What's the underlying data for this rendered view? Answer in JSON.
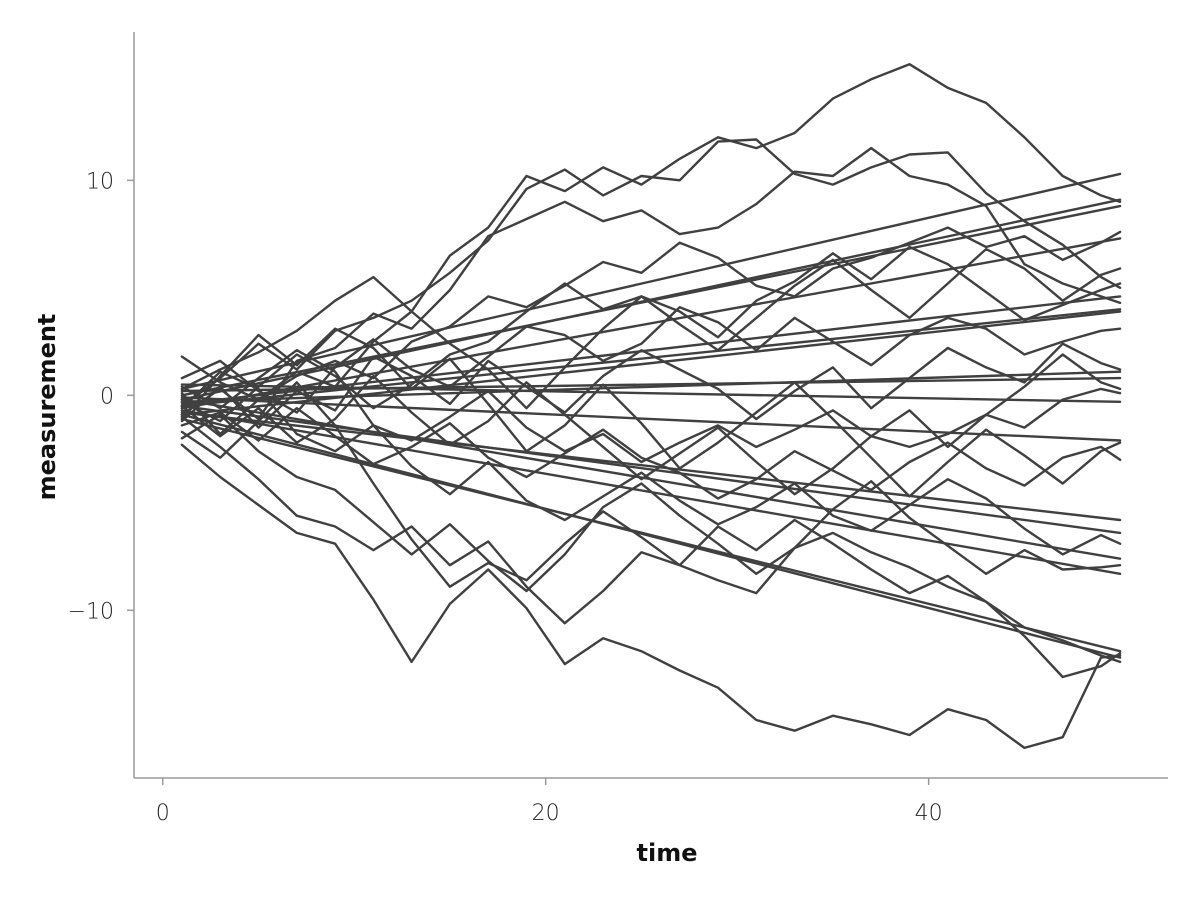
{
  "chart_data": {
    "type": "line",
    "title": "",
    "xlabel": "time",
    "ylabel": "measurement",
    "xlim": [
      -1.5,
      52.5
    ],
    "ylim": [
      -17.8,
      16.9
    ],
    "x_ticks": [
      0,
      20,
      40
    ],
    "y_ticks": [
      -10,
      0,
      10
    ],
    "x_tick_labels": [
      "0",
      "20",
      "40"
    ],
    "y_tick_labels": [
      "−10",
      "0",
      "10"
    ],
    "grid": false,
    "legend": "none",
    "line_color": "#404040",
    "background": "#ffffff",
    "axis_color": "#9a9a9a",
    "series": [
      {
        "x": [
          1,
          50
        ],
        "y": [
          0.3,
          10.3
        ]
      },
      {
        "x": [
          1,
          50
        ],
        "y": [
          -0.2,
          9.1
        ]
      },
      {
        "x": [
          1,
          50
        ],
        "y": [
          0.0,
          8.8
        ]
      },
      {
        "x": [
          1,
          50
        ],
        "y": [
          -0.6,
          7.3
        ]
      },
      {
        "x": [
          1,
          50
        ],
        "y": [
          -0.4,
          4.6
        ]
      },
      {
        "x": [
          1,
          50
        ],
        "y": [
          -0.9,
          3.9
        ]
      },
      {
        "x": [
          1,
          50
        ],
        "y": [
          -0.5,
          4.0
        ]
      },
      {
        "x": [
          1,
          50
        ],
        "y": [
          -0.3,
          1.1
        ]
      },
      {
        "x": [
          1,
          50
        ],
        "y": [
          0.2,
          0.8
        ]
      },
      {
        "x": [
          1,
          50
        ],
        "y": [
          0.5,
          -0.3
        ]
      },
      {
        "x": [
          1,
          50
        ],
        "y": [
          -0.1,
          -2.1
        ]
      },
      {
        "x": [
          1,
          50
        ],
        "y": [
          -0.8,
          -5.8
        ]
      },
      {
        "x": [
          1,
          50
        ],
        "y": [
          -0.5,
          -6.4
        ]
      },
      {
        "x": [
          1,
          50
        ],
        "y": [
          -0.2,
          -7.6
        ]
      },
      {
        "x": [
          1,
          50
        ],
        "y": [
          -0.7,
          -8.3
        ]
      },
      {
        "x": [
          1,
          50
        ],
        "y": [
          -1.1,
          -11.9
        ]
      },
      {
        "x": [
          1,
          50
        ],
        "y": [
          -0.9,
          -12.2
        ]
      },
      {
        "x": [
          1,
          3,
          5,
          7,
          9,
          11,
          13,
          15,
          17,
          19,
          21,
          23,
          25,
          27,
          29,
          31,
          33,
          35,
          37,
          39,
          41,
          43,
          45,
          47,
          49,
          50
        ],
        "y": [
          0.3,
          1.2,
          2.0,
          3.0,
          4.4,
          5.5,
          3.9,
          6.5,
          7.8,
          10.2,
          9.5,
          10.6,
          9.8,
          11.0,
          12.0,
          11.5,
          12.2,
          13.8,
          14.7,
          15.4,
          14.3,
          13.6,
          12.0,
          10.2,
          9.3,
          9.0
        ]
      },
      {
        "x": [
          1,
          3,
          5,
          7,
          9,
          11,
          13,
          15,
          17,
          19,
          21,
          23,
          25,
          27,
          29,
          31,
          33,
          35,
          37,
          39,
          41,
          43,
          45,
          47,
          49,
          50
        ],
        "y": [
          -0.5,
          0.8,
          2.4,
          1.2,
          3.0,
          3.6,
          4.4,
          5.7,
          7.2,
          9.6,
          10.5,
          9.3,
          10.2,
          10.0,
          11.8,
          11.9,
          10.3,
          9.8,
          10.6,
          11.2,
          11.3,
          9.4,
          8.1,
          7.0,
          5.5,
          5.0
        ]
      },
      {
        "x": [
          1,
          3,
          5,
          7,
          9,
          11,
          13,
          15,
          17,
          19,
          21,
          23,
          25,
          27,
          29,
          31,
          33,
          35,
          37,
          39,
          41,
          43,
          45,
          47,
          49,
          50
        ],
        "y": [
          -0.9,
          0.3,
          -1.1,
          1.6,
          2.2,
          3.8,
          3.1,
          4.9,
          7.4,
          8.2,
          9.0,
          8.1,
          8.6,
          7.5,
          7.8,
          8.9,
          10.4,
          10.2,
          11.5,
          10.2,
          9.8,
          8.8,
          6.1,
          5.2,
          4.6,
          4.3
        ]
      },
      {
        "x": [
          1,
          3,
          5,
          7,
          9,
          11,
          13,
          15,
          17,
          19,
          21,
          23,
          25,
          27,
          29,
          31,
          33,
          35,
          37,
          39,
          41,
          43,
          45,
          47,
          49,
          50
        ],
        "y": [
          1.8,
          0.6,
          -0.2,
          0.9,
          1.6,
          0.8,
          2.5,
          3.2,
          4.6,
          4.1,
          5.1,
          6.2,
          5.7,
          7.1,
          6.4,
          5.1,
          4.6,
          5.9,
          6.4,
          7.1,
          7.8,
          6.9,
          7.4,
          6.3,
          7.1,
          7.6
        ]
      },
      {
        "x": [
          1,
          3,
          5,
          7,
          9,
          11,
          13,
          15,
          17,
          19,
          21,
          23,
          25,
          27,
          29,
          31,
          33,
          35,
          37,
          39,
          41,
          43,
          45,
          47,
          49,
          50
        ],
        "y": [
          -0.3,
          -1.2,
          0.4,
          1.9,
          0.9,
          -0.6,
          0.5,
          1.9,
          2.5,
          3.9,
          5.2,
          4.0,
          4.6,
          3.9,
          2.7,
          4.4,
          5.3,
          6.6,
          5.4,
          6.9,
          6.1,
          4.8,
          3.5,
          4.2,
          4.9,
          5.2
        ]
      },
      {
        "x": [
          1,
          3,
          5,
          7,
          9,
          11,
          13,
          15,
          17,
          19,
          21,
          23,
          25,
          27,
          29,
          31,
          33,
          35,
          37,
          39,
          41,
          43,
          45,
          47,
          49,
          50
        ],
        "y": [
          0.8,
          1.6,
          0.2,
          -0.8,
          1.3,
          2.6,
          1.2,
          0.4,
          1.8,
          3.2,
          2.8,
          1.6,
          2.4,
          4.1,
          3.4,
          2.1,
          3.6,
          2.5,
          1.4,
          2.8,
          3.6,
          3.1,
          1.9,
          2.5,
          3.0,
          3.1
        ]
      },
      {
        "x": [
          1,
          3,
          5,
          7,
          9,
          11,
          13,
          15,
          17,
          19,
          21,
          23,
          25,
          27,
          29,
          31,
          33,
          35,
          37,
          39,
          41,
          43,
          45,
          47,
          49,
          50
        ],
        "y": [
          -1.2,
          0.4,
          -1.5,
          0.2,
          -0.7,
          1.8,
          0.9,
          -0.4,
          1.6,
          0.4,
          -0.8,
          0.9,
          2.1,
          1.2,
          0.3,
          -1.1,
          0.2,
          1.3,
          -0.6,
          0.8,
          2.2,
          1.3,
          0.6,
          2.4,
          1.5,
          1.2
        ]
      },
      {
        "x": [
          1,
          3,
          5,
          7,
          9,
          11,
          13,
          15,
          17,
          19,
          21,
          23,
          25,
          27,
          29,
          31,
          33,
          35,
          37,
          39,
          41,
          43,
          45,
          47,
          49,
          50
        ],
        "y": [
          0.4,
          -0.6,
          0.8,
          2.1,
          1.1,
          -1.4,
          -2.1,
          -1.0,
          0.2,
          -1.5,
          -2.6,
          -1.8,
          -3.1,
          -2.2,
          -1.4,
          -2.4,
          -1.6,
          -0.7,
          -1.9,
          -2.4,
          -1.8,
          -0.9,
          -1.5,
          -0.2,
          0.3,
          0.1
        ]
      },
      {
        "x": [
          1,
          3,
          5,
          7,
          9,
          11,
          13,
          15,
          17,
          19,
          21,
          23,
          25,
          27,
          29,
          31,
          33,
          35,
          37,
          39,
          41,
          43,
          45,
          47,
          49,
          50
        ],
        "y": [
          -1.4,
          -0.8,
          -2.1,
          -0.6,
          -1.9,
          -3.2,
          -2.4,
          -1.3,
          -2.9,
          -3.8,
          -2.7,
          -1.6,
          -2.9,
          -3.6,
          -4.8,
          -3.9,
          -2.6,
          -3.5,
          -4.4,
          -3.1,
          -2.2,
          -3.4,
          -4.2,
          -2.9,
          -2.4,
          -3.0
        ]
      },
      {
        "x": [
          1,
          3,
          5,
          7,
          9,
          11,
          13,
          15,
          17,
          19,
          21,
          23,
          25,
          27,
          29,
          31,
          33,
          35,
          37,
          39,
          41,
          43,
          45,
          47,
          49,
          50
        ],
        "y": [
          -0.6,
          1.1,
          0.3,
          -1.8,
          -2.6,
          -1.4,
          -3.3,
          -4.6,
          -3.1,
          -4.9,
          -5.8,
          -4.7,
          -3.6,
          -4.9,
          -6.0,
          -5.2,
          -4.1,
          -5.6,
          -6.3,
          -5.1,
          -3.9,
          -4.8,
          -6.2,
          -7.4,
          -6.5,
          -6.9
        ]
      },
      {
        "x": [
          1,
          3,
          5,
          7,
          9,
          11,
          13,
          15,
          17,
          19,
          21,
          23,
          25,
          27,
          29,
          31,
          33,
          35,
          37,
          39,
          41,
          43,
          45,
          47,
          49,
          50
        ],
        "y": [
          -1.7,
          -2.9,
          -1.2,
          0.6,
          -1.4,
          -4.1,
          -6.7,
          -8.9,
          -7.8,
          -8.6,
          -6.9,
          -5.4,
          -6.6,
          -7.9,
          -6.1,
          -7.2,
          -5.8,
          -6.9,
          -8.1,
          -9.2,
          -8.4,
          -9.6,
          -10.8,
          -11.4,
          -12.1,
          -12.4
        ]
      },
      {
        "x": [
          1,
          3,
          5,
          7,
          9,
          11,
          13,
          15,
          17,
          19,
          21,
          23,
          25,
          27,
          29,
          31,
          33,
          35,
          37,
          39,
          41,
          43,
          45,
          47,
          49,
          50
        ],
        "y": [
          -2.3,
          -3.8,
          -5.1,
          -6.4,
          -6.9,
          -9.5,
          -12.4,
          -9.7,
          -8.1,
          -9.9,
          -12.5,
          -11.3,
          -11.9,
          -12.8,
          -13.6,
          -15.1,
          -15.6,
          -14.9,
          -15.3,
          -15.8,
          -14.6,
          -15.1,
          -16.4,
          -15.9,
          -12.2,
          -12.1
        ]
      },
      {
        "x": [
          1,
          3,
          5,
          7,
          9,
          11,
          13,
          15,
          17,
          19,
          21,
          23,
          25,
          27,
          29,
          31,
          33,
          35,
          37,
          39,
          41,
          43,
          45,
          47,
          49,
          50
        ],
        "y": [
          -1.0,
          -2.4,
          -3.9,
          -5.6,
          -6.1,
          -7.2,
          -6.1,
          -7.9,
          -6.8,
          -8.9,
          -10.6,
          -9.1,
          -7.3,
          -7.9,
          -8.6,
          -9.2,
          -7.1,
          -6.4,
          -7.3,
          -8.0,
          -8.9,
          -9.6,
          -11.2,
          -13.1,
          -12.6,
          -12.0
        ]
      },
      {
        "x": [
          1,
          3,
          5,
          7,
          9,
          11,
          13,
          15,
          17,
          19,
          21,
          23,
          25,
          27,
          29,
          31,
          33,
          35,
          37,
          39,
          41,
          43,
          45,
          47,
          49,
          50
        ],
        "y": [
          -2.0,
          -0.9,
          -2.6,
          -3.8,
          -4.4,
          -5.9,
          -7.4,
          -6.0,
          -7.7,
          -9.1,
          -7.4,
          -5.2,
          -4.1,
          -5.6,
          -6.9,
          -8.3,
          -7.1,
          -5.3,
          -4.0,
          -5.7,
          -7.0,
          -8.3,
          -7.2,
          -8.1,
          -8.0,
          -7.9
        ]
      },
      {
        "x": [
          1,
          3,
          5,
          7,
          9,
          11,
          13,
          15,
          17,
          19,
          21,
          23,
          25,
          27,
          29,
          31,
          33,
          35,
          37,
          39,
          41,
          43,
          45,
          47,
          49,
          50
        ],
        "y": [
          -1.1,
          0.9,
          2.8,
          1.4,
          3.1,
          2.2,
          0.3,
          1.7,
          -0.4,
          -2.6,
          -1.4,
          0.5,
          -1.3,
          -3.4,
          -2.2,
          -0.8,
          0.6,
          -1.1,
          -2.9,
          -4.7,
          -3.1,
          -1.6,
          -2.8,
          -4.1,
          -2.6,
          -2.2
        ]
      },
      {
        "x": [
          1,
          3,
          5,
          7,
          9,
          11,
          13,
          15,
          17,
          19,
          21,
          23,
          25,
          27,
          29,
          31,
          33,
          35,
          37,
          39,
          41,
          43,
          45,
          47,
          49,
          50
        ],
        "y": [
          0.1,
          -1.8,
          -0.2,
          1.1,
          0.4,
          2.5,
          3.9,
          2.4,
          1.2,
          -0.6,
          1.3,
          3.1,
          4.6,
          3.3,
          2.1,
          3.6,
          5.1,
          6.3,
          4.9,
          3.6,
          5.2,
          6.8,
          5.9,
          4.4,
          5.6,
          5.9
        ]
      },
      {
        "x": [
          1,
          3,
          5,
          7,
          9,
          11,
          13,
          15,
          17,
          19,
          21,
          23,
          25,
          27,
          29,
          31,
          33,
          35,
          37,
          39,
          41,
          43,
          45,
          47,
          49,
          50
        ],
        "y": [
          -0.5,
          -1.9,
          -0.6,
          -2.2,
          -1.1,
          0.9,
          -0.8,
          -2.3,
          -1.2,
          0.6,
          -0.9,
          -2.4,
          -3.9,
          -2.7,
          -1.5,
          -3.1,
          -4.6,
          -3.4,
          -1.9,
          -0.7,
          -2.4,
          -0.9,
          0.4,
          1.9,
          0.6,
          0.3
        ]
      }
    ]
  }
}
